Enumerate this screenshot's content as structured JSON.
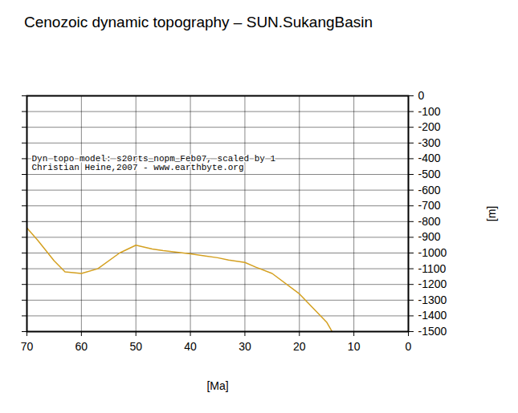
{
  "chart_data": {
    "type": "line",
    "title": "Cenozoic dynamic topography – SUN.SukangBasin",
    "x_label": "[Ma]",
    "y_label": "[m]",
    "annotations": [
      "Dyn topo model: s20rts_nopm_Feb07, scaled by 1",
      "Christian Heine,2007 - www.earthbyte.org"
    ],
    "x": [
      70,
      68,
      65,
      63,
      60,
      57,
      53,
      50,
      47,
      45,
      40,
      35,
      33,
      30,
      28,
      25,
      20,
      15,
      14
    ],
    "series": [
      {
        "name": "SUN.SukangBasin",
        "color": "#d4a020",
        "values": [
          -840,
          -920,
          -1050,
          -1120,
          -1130,
          -1100,
          -1000,
          -950,
          -975,
          -985,
          -1005,
          -1030,
          -1045,
          -1060,
          -1090,
          -1130,
          -1260,
          -1440,
          -1500
        ]
      }
    ],
    "xlim": [
      70,
      0
    ],
    "xticks": [
      70,
      60,
      50,
      40,
      30,
      20,
      10,
      0
    ],
    "ylim": [
      -1500,
      0
    ],
    "yticks": [
      0,
      -100,
      -200,
      -300,
      -400,
      -500,
      -600,
      -700,
      -800,
      -900,
      -1000,
      -1100,
      -1200,
      -1300,
      -1400,
      -1500
    ],
    "grid": true
  }
}
